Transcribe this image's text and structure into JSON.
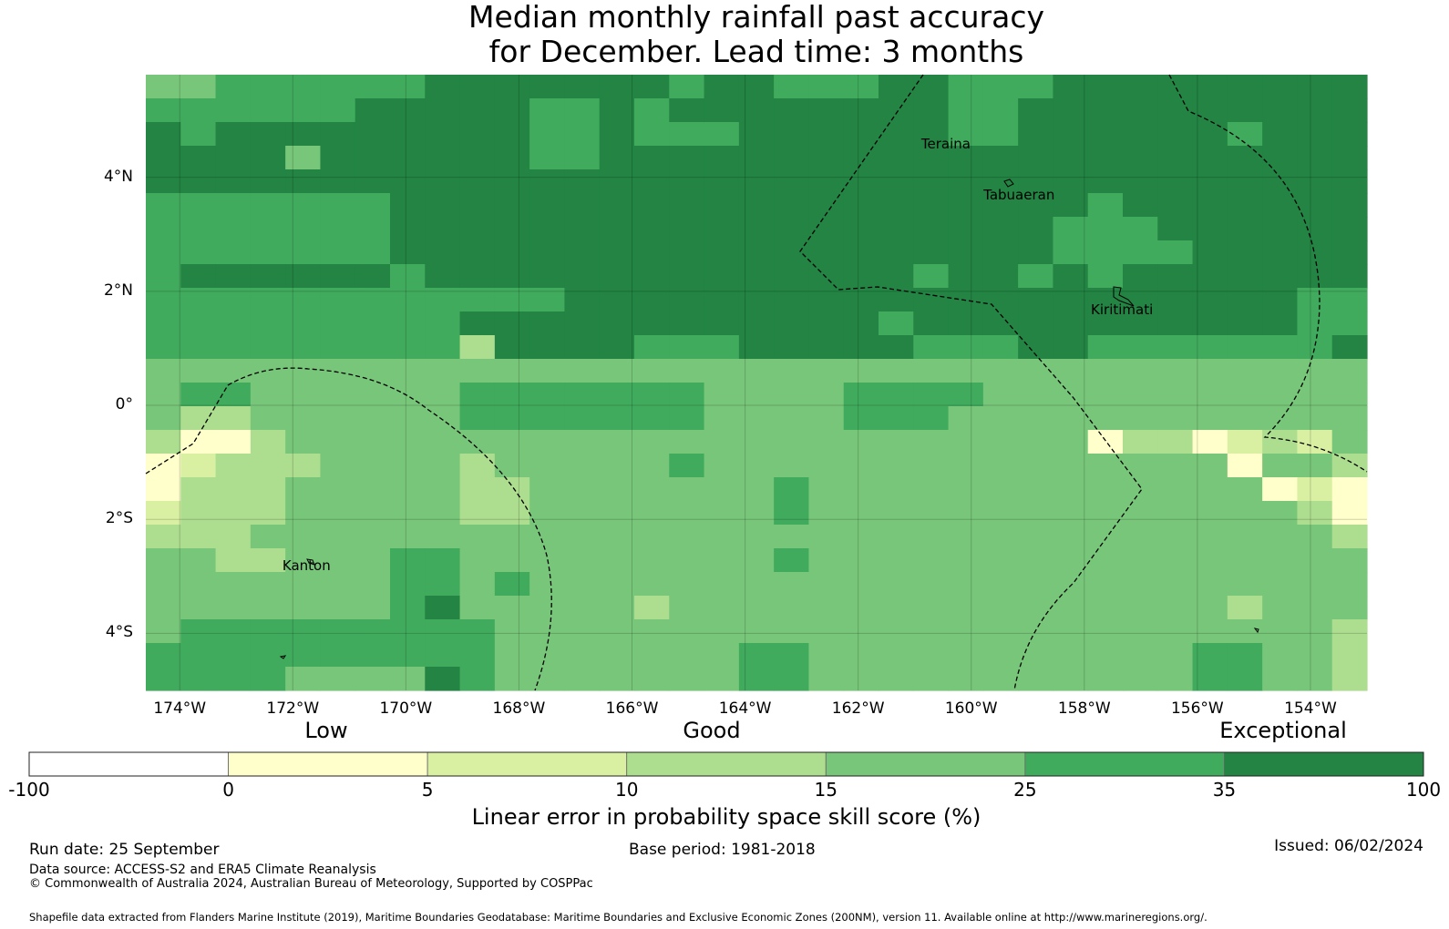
{
  "title_line1": "Median monthly rainfall past accuracy",
  "title_line2": "for December. Lead time: 3 months",
  "map": {
    "lon_range": [
      -174.6,
      -153.0
    ],
    "lat_range": [
      -5.0,
      5.8
    ],
    "lat_ticks": [
      "4°N",
      "2°N",
      "0°",
      "2°S",
      "4°S"
    ],
    "lat_values": [
      4,
      2,
      0,
      -2,
      -4
    ],
    "lon_ticks": [
      "174°W",
      "172°W",
      "170°W",
      "168°W",
      "166°W",
      "164°W",
      "162°W",
      "160°W",
      "158°W",
      "156°W",
      "154°W"
    ],
    "lon_values": [
      -174,
      -172,
      -170,
      -168,
      -166,
      -164,
      -162,
      -160,
      -158,
      -156,
      -154
    ],
    "places": [
      {
        "name": "Teraina",
        "label": "Teraina",
        "lon": -160.4,
        "lat": 4.6
      },
      {
        "name": "Tabuaeran",
        "label": "Tabuaeran",
        "lon": -159.3,
        "lat": 3.7
      },
      {
        "name": "Kiritimati",
        "label": "Kiritimati",
        "lon": -157.4,
        "lat": 1.7
      },
      {
        "name": "Kanton",
        "label": "Kanton",
        "lon": -171.7,
        "lat": -2.8
      }
    ]
  },
  "legend": {
    "categories": [
      "Low",
      "Good",
      "Exceptional"
    ],
    "bins": [
      {
        "from": "-100",
        "to": "0",
        "color": "#ffffff"
      },
      {
        "from": "0",
        "to": "5",
        "color": "#ffffcc"
      },
      {
        "from": "5",
        "to": "10",
        "color": "#d9f0a3"
      },
      {
        "from": "10",
        "to": "15",
        "color": "#addd8e"
      },
      {
        "from": "15",
        "to": "25",
        "color": "#78c679"
      },
      {
        "from": "25",
        "to": "35",
        "color": "#41ab5d"
      },
      {
        "from": "35",
        "to": "100",
        "color": "#238443"
      }
    ],
    "tick_labels": [
      "-100",
      "0",
      "5",
      "10",
      "15",
      "25",
      "35",
      "100"
    ],
    "label": "Linear error in probability space skill score (%)"
  },
  "footer": {
    "run_date": "Run date: 25 September",
    "base_period": "Base period: 1981-2018",
    "issued": "Issued: 06/02/2024",
    "data_source": "Data source: ACCESS-S2 and ERA5 Climate Reanalysis",
    "copyright": "© Commonwealth of Australia 2024, Australian Bureau of Meteorology, Supported by COSPPac",
    "shapefile": "Shapefile data extracted from Flanders Marine Institute (2019), Maritime Boundaries Geodatabase: Maritime Boundaries and Exclusive Economic Zones (200NM), version 11. Available online at http://www.marineregions.org/."
  }
}
